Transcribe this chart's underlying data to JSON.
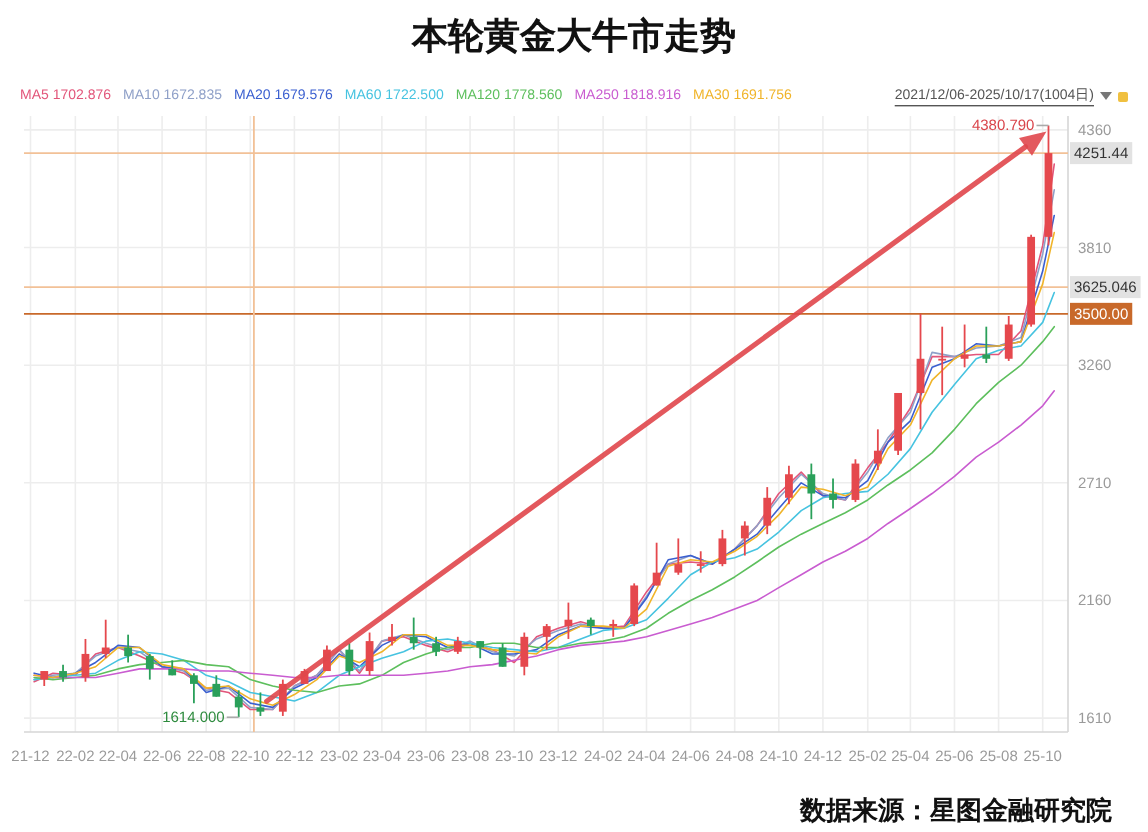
{
  "chart_data": {
    "type": "candlestick",
    "title": "本轮黄金大牛市走势",
    "x": [
      "2021-12-20",
      "2022-01-15",
      "2022-02-15",
      "2022-03-15",
      "2022-04-15",
      "2022-05-15",
      "2022-06-15",
      "2022-07-15",
      "2022-08-15",
      "2022-09-15",
      "2022-10-15",
      "2022-11-15",
      "2022-12-15",
      "2023-01-15",
      "2023-02-15",
      "2023-03-15",
      "2023-04-15",
      "2023-05-15",
      "2023-06-15",
      "2023-07-15",
      "2023-08-15",
      "2023-09-15",
      "2023-10-15",
      "2023-11-15",
      "2023-12-15",
      "2024-01-15",
      "2024-02-15",
      "2024-03-15",
      "2024-04-15",
      "2024-05-15",
      "2024-06-15",
      "2024-07-15",
      "2024-08-15",
      "2024-09-15",
      "2024-10-15",
      "2024-11-15",
      "2024-12-15",
      "2025-01-15",
      "2025-02-15",
      "2025-03-15",
      "2025-04-15",
      "2025-05-15",
      "2025-06-15",
      "2025-07-15",
      "2025-08-15",
      "2025-09-15",
      "2025-10-09"
    ],
    "ohlc": [
      [
        1790,
        1830,
        1760,
        1830
      ],
      [
        1830,
        1860,
        1780,
        1800
      ],
      [
        1800,
        1980,
        1780,
        1910
      ],
      [
        1910,
        2070,
        1890,
        1940
      ],
      [
        1940,
        2000,
        1870,
        1900
      ],
      [
        1900,
        1910,
        1790,
        1840
      ],
      [
        1840,
        1880,
        1810,
        1810
      ],
      [
        1810,
        1820,
        1680,
        1770
      ],
      [
        1770,
        1810,
        1710,
        1710
      ],
      [
        1710,
        1740,
        1614,
        1660
      ],
      [
        1660,
        1730,
        1620,
        1640
      ],
      [
        1640,
        1790,
        1620,
        1770
      ],
      [
        1770,
        1840,
        1770,
        1830
      ],
      [
        1830,
        1950,
        1830,
        1930
      ],
      [
        1930,
        1960,
        1810,
        1830
      ],
      [
        1830,
        2010,
        1810,
        1970
      ],
      [
        1970,
        2050,
        1950,
        1990
      ],
      [
        1990,
        2080,
        1930,
        1960
      ],
      [
        1960,
        1990,
        1900,
        1920
      ],
      [
        1920,
        1990,
        1910,
        1970
      ],
      [
        1970,
        1970,
        1890,
        1940
      ],
      [
        1940,
        1960,
        1850,
        1850
      ],
      [
        1850,
        2010,
        1810,
        1990
      ],
      [
        1990,
        2050,
        1930,
        2040
      ],
      [
        2040,
        2150,
        1980,
        2070
      ],
      [
        2070,
        2080,
        2000,
        2040
      ],
      [
        2040,
        2070,
        1990,
        2050
      ],
      [
        2050,
        2240,
        2040,
        2230
      ],
      [
        2230,
        2430,
        2230,
        2290
      ],
      [
        2290,
        2450,
        2280,
        2330
      ],
      [
        2330,
        2390,
        2290,
        2330
      ],
      [
        2330,
        2490,
        2320,
        2450
      ],
      [
        2450,
        2530,
        2370,
        2510
      ],
      [
        2510,
        2690,
        2470,
        2640
      ],
      [
        2640,
        2790,
        2610,
        2750
      ],
      [
        2750,
        2800,
        2540,
        2660
      ],
      [
        2660,
        2730,
        2590,
        2630
      ],
      [
        2630,
        2820,
        2620,
        2800
      ],
      [
        2800,
        2960,
        2770,
        2860
      ],
      [
        2860,
        3130,
        2840,
        3130
      ],
      [
        3130,
        3500,
        2960,
        3290
      ],
      [
        3290,
        3440,
        3120,
        3290
      ],
      [
        3290,
        3450,
        3250,
        3310
      ],
      [
        3310,
        3440,
        3270,
        3290
      ],
      [
        3290,
        3490,
        3280,
        3450
      ],
      [
        3450,
        3870,
        3440,
        3860
      ],
      [
        3860,
        4380.79,
        3820,
        4251.44
      ]
    ],
    "colors": [
      "#e5484d",
      "#2aa05a",
      "#e5484d",
      "#e5484d",
      "#2aa05a",
      "#2aa05a",
      "#2aa05a",
      "#2aa05a",
      "#2aa05a",
      "#2aa05a",
      "#2aa05a",
      "#e5484d",
      "#e5484d",
      "#e5484d",
      "#2aa05a",
      "#e5484d",
      "#e5484d",
      "#2aa05a",
      "#2aa05a",
      "#e5484d",
      "#2aa05a",
      "#2aa05a",
      "#e5484d",
      "#e5484d",
      "#e5484d",
      "#2aa05a",
      "#e5484d",
      "#e5484d",
      "#e5484d",
      "#e5484d",
      "#e5484d",
      "#e5484d",
      "#e5484d",
      "#e5484d",
      "#e5484d",
      "#2aa05a",
      "#2aa05a",
      "#e5484d",
      "#e5484d",
      "#e5484d",
      "#e5484d",
      "#e5484d",
      "#e5484d",
      "#2aa05a",
      "#e5484d",
      "#e5484d",
      "#e5484d"
    ],
    "series": [
      {
        "type": "line",
        "name": "MA5 1702.876",
        "color": "#e2557a",
        "x": [
          "2021-12-06",
          "2022-01-01",
          "2022-02-01",
          "2022-03-01",
          "2022-04-01",
          "2022-05-01",
          "2022-06-01",
          "2022-07-01",
          "2022-08-01",
          "2022-09-01",
          "2022-10-01",
          "2022-11-01",
          "2022-12-01",
          "2023-01-01",
          "2023-02-01",
          "2023-03-01",
          "2023-04-01",
          "2023-05-01",
          "2023-06-01",
          "2023-07-01",
          "2023-08-01",
          "2023-09-01",
          "2023-10-01",
          "2023-11-01",
          "2023-12-01",
          "2024-01-01",
          "2024-02-01",
          "2024-03-01",
          "2024-04-01",
          "2024-05-01",
          "2024-06-01",
          "2024-07-01",
          "2024-08-01",
          "2024-09-01",
          "2024-10-01",
          "2024-11-01",
          "2024-12-01",
          "2025-01-01",
          "2025-02-01",
          "2025-03-01",
          "2025-04-01",
          "2025-05-01",
          "2025-06-01",
          "2025-07-01",
          "2025-08-01",
          "2025-09-01",
          "2025-10-01",
          "2025-10-17"
        ],
        "values": [
          1780,
          1820,
          1810,
          1910,
          1940,
          1900,
          1850,
          1820,
          1750,
          1730,
          1650,
          1650,
          1760,
          1810,
          1930,
          1820,
          1970,
          1990,
          1950,
          1920,
          1960,
          1930,
          1870,
          1990,
          2030,
          2060,
          2030,
          2040,
          2200,
          2330,
          2340,
          2330,
          2400,
          2510,
          2660,
          2760,
          2650,
          2630,
          2780,
          2900,
          3060,
          3300,
          3300,
          3310,
          3310,
          3420,
          3820,
          4200
        ]
      },
      {
        "type": "line",
        "name": "MA10 1672.835",
        "color": "#8fa0c8",
        "x": [
          "2021-12-06",
          "2022-01-01",
          "2022-02-01",
          "2022-03-01",
          "2022-04-01",
          "2022-05-01",
          "2022-06-01",
          "2022-07-01",
          "2022-08-01",
          "2022-09-01",
          "2022-10-01",
          "2022-11-01",
          "2022-12-01",
          "2023-01-01",
          "2023-02-01",
          "2023-03-01",
          "2023-04-01",
          "2023-05-01",
          "2023-06-01",
          "2023-07-01",
          "2023-08-01",
          "2023-09-01",
          "2023-10-01",
          "2023-11-01",
          "2023-12-01",
          "2024-01-01",
          "2024-02-01",
          "2024-03-01",
          "2024-04-01",
          "2024-05-01",
          "2024-06-01",
          "2024-07-01",
          "2024-08-01",
          "2024-09-01",
          "2024-10-01",
          "2024-11-01",
          "2024-12-01",
          "2025-01-01",
          "2025-02-01",
          "2025-03-01",
          "2025-04-01",
          "2025-05-01",
          "2025-06-01",
          "2025-07-01",
          "2025-08-01",
          "2025-09-01",
          "2025-10-01",
          "2025-10-17"
        ],
        "values": [
          1790,
          1810,
          1820,
          1900,
          1940,
          1920,
          1850,
          1830,
          1740,
          1750,
          1660,
          1650,
          1760,
          1810,
          1930,
          1830,
          1970,
          2000,
          1960,
          1930,
          1970,
          1920,
          1900,
          1980,
          2020,
          2050,
          2030,
          2030,
          2180,
          2330,
          2370,
          2330,
          2400,
          2510,
          2640,
          2750,
          2660,
          2630,
          2760,
          2920,
          3040,
          3320,
          3300,
          3340,
          3350,
          3390,
          3780,
          4080
        ]
      },
      {
        "type": "line",
        "name": "MA20 1679.576",
        "color": "#3a5fd0",
        "x": [
          "2021-12-06",
          "2022-01-01",
          "2022-02-01",
          "2022-03-01",
          "2022-04-01",
          "2022-05-01",
          "2022-06-01",
          "2022-07-01",
          "2022-08-01",
          "2022-09-01",
          "2022-10-01",
          "2022-11-01",
          "2022-12-01",
          "2023-01-01",
          "2023-02-01",
          "2023-03-01",
          "2023-04-01",
          "2023-05-01",
          "2023-06-01",
          "2023-07-01",
          "2023-08-01",
          "2023-09-01",
          "2023-10-01",
          "2023-11-01",
          "2023-12-01",
          "2024-01-01",
          "2024-02-01",
          "2024-03-01",
          "2024-04-01",
          "2024-05-01",
          "2024-06-01",
          "2024-07-01",
          "2024-08-01",
          "2024-09-01",
          "2024-10-01",
          "2024-11-01",
          "2024-12-01",
          "2025-01-01",
          "2025-02-01",
          "2025-03-01",
          "2025-04-01",
          "2025-05-01",
          "2025-06-01",
          "2025-07-01",
          "2025-08-01",
          "2025-09-01",
          "2025-10-01",
          "2025-10-17"
        ],
        "values": [
          1820,
          1800,
          1820,
          1870,
          1950,
          1940,
          1850,
          1840,
          1730,
          1760,
          1680,
          1660,
          1750,
          1800,
          1910,
          1850,
          1950,
          2000,
          1990,
          1940,
          1960,
          1910,
          1910,
          1930,
          2000,
          2040,
          2030,
          2030,
          2170,
          2350,
          2370,
          2330,
          2400,
          2470,
          2590,
          2710,
          2650,
          2640,
          2720,
          2900,
          3000,
          3250,
          3290,
          3360,
          3350,
          3370,
          3700,
          3960
        ]
      },
      {
        "type": "line",
        "name": "MA60 1722.500",
        "color": "#46c3e0",
        "x": [
          "2021-12-06",
          "2022-01-01",
          "2022-02-01",
          "2022-03-01",
          "2022-04-01",
          "2022-05-01",
          "2022-06-01",
          "2022-07-01",
          "2022-08-01",
          "2022-09-01",
          "2022-10-01",
          "2022-11-01",
          "2022-12-01",
          "2023-01-01",
          "2023-02-01",
          "2023-03-01",
          "2023-04-01",
          "2023-05-01",
          "2023-06-01",
          "2023-07-01",
          "2023-08-01",
          "2023-09-01",
          "2023-10-01",
          "2023-11-01",
          "2023-12-01",
          "2024-01-01",
          "2024-02-01",
          "2024-03-01",
          "2024-04-01",
          "2024-05-01",
          "2024-06-01",
          "2024-07-01",
          "2024-08-01",
          "2024-09-01",
          "2024-10-01",
          "2024-11-01",
          "2024-12-01",
          "2025-01-01",
          "2025-02-01",
          "2025-03-01",
          "2025-04-01",
          "2025-05-01",
          "2025-06-01",
          "2025-07-01",
          "2025-08-01",
          "2025-09-01",
          "2025-10-01",
          "2025-10-17"
        ],
        "values": [
          1790,
          1800,
          1810,
          1820,
          1880,
          1920,
          1910,
          1880,
          1810,
          1780,
          1730,
          1710,
          1690,
          1730,
          1810,
          1850,
          1890,
          1920,
          1970,
          1980,
          1960,
          1940,
          1930,
          1920,
          1940,
          1980,
          2020,
          2030,
          2070,
          2170,
          2280,
          2340,
          2360,
          2400,
          2480,
          2580,
          2640,
          2660,
          2670,
          2750,
          2870,
          3040,
          3170,
          3290,
          3330,
          3350,
          3460,
          3600
        ]
      },
      {
        "type": "line",
        "name": "MA120 1778.560",
        "color": "#5dbf5d",
        "x": [
          "2021-12-06",
          "2022-01-01",
          "2022-02-01",
          "2022-03-01",
          "2022-04-01",
          "2022-05-01",
          "2022-06-01",
          "2022-07-01",
          "2022-08-01",
          "2022-09-01",
          "2022-10-01",
          "2022-11-01",
          "2022-12-01",
          "2023-01-01",
          "2023-02-01",
          "2023-03-01",
          "2023-04-01",
          "2023-05-01",
          "2023-06-01",
          "2023-07-01",
          "2023-08-01",
          "2023-09-01",
          "2023-10-01",
          "2023-11-01",
          "2023-12-01",
          "2024-01-01",
          "2024-02-01",
          "2024-03-01",
          "2024-04-01",
          "2024-05-01",
          "2024-06-01",
          "2024-07-01",
          "2024-08-01",
          "2024-09-01",
          "2024-10-01",
          "2024-11-01",
          "2024-12-01",
          "2025-01-01",
          "2025-02-01",
          "2025-03-01",
          "2025-04-01",
          "2025-05-01",
          "2025-06-01",
          "2025-07-01",
          "2025-08-01",
          "2025-09-01",
          "2025-10-01",
          "2025-10-17"
        ],
        "values": [
          1800,
          1790,
          1800,
          1810,
          1840,
          1860,
          1870,
          1880,
          1860,
          1850,
          1790,
          1760,
          1740,
          1730,
          1760,
          1770,
          1810,
          1870,
          1910,
          1940,
          1940,
          1960,
          1960,
          1940,
          1940,
          1960,
          1970,
          1990,
          2030,
          2100,
          2160,
          2210,
          2270,
          2340,
          2410,
          2470,
          2520,
          2570,
          2630,
          2700,
          2770,
          2850,
          2960,
          3080,
          3180,
          3260,
          3370,
          3440
        ]
      },
      {
        "type": "line",
        "name": "MA250 1818.916",
        "color": "#c95cd0",
        "x": [
          "2021-12-06",
          "2022-01-01",
          "2022-02-01",
          "2022-03-01",
          "2022-04-01",
          "2022-05-01",
          "2022-06-01",
          "2022-07-01",
          "2022-08-01",
          "2022-09-01",
          "2022-10-01",
          "2022-11-01",
          "2022-12-01",
          "2023-01-01",
          "2023-02-01",
          "2023-03-01",
          "2023-04-01",
          "2023-05-01",
          "2023-06-01",
          "2023-07-01",
          "2023-08-01",
          "2023-09-01",
          "2023-10-01",
          "2023-11-01",
          "2023-12-01",
          "2024-01-01",
          "2024-02-01",
          "2024-03-01",
          "2024-04-01",
          "2024-05-01",
          "2024-06-01",
          "2024-07-01",
          "2024-08-01",
          "2024-09-01",
          "2024-10-01",
          "2024-11-01",
          "2024-12-01",
          "2025-01-01",
          "2025-02-01",
          "2025-03-01",
          "2025-04-01",
          "2025-05-01",
          "2025-06-01",
          "2025-07-01",
          "2025-08-01",
          "2025-09-01",
          "2025-10-01",
          "2025-10-17"
        ],
        "values": [
          1810,
          1800,
          1800,
          1800,
          1820,
          1840,
          1840,
          1840,
          1830,
          1830,
          1820,
          1810,
          1800,
          1800,
          1810,
          1810,
          1810,
          1810,
          1820,
          1830,
          1850,
          1860,
          1880,
          1900,
          1930,
          1950,
          1960,
          1970,
          1990,
          2020,
          2050,
          2080,
          2120,
          2160,
          2220,
          2280,
          2340,
          2390,
          2450,
          2520,
          2590,
          2660,
          2740,
          2830,
          2900,
          2980,
          3070,
          3140
        ]
      },
      {
        "type": "line",
        "name": "MA30 1691.756",
        "color": "#f0b429",
        "x": [
          "2021-12-06",
          "2022-01-01",
          "2022-02-01",
          "2022-03-01",
          "2022-04-01",
          "2022-05-01",
          "2022-06-01",
          "2022-07-01",
          "2022-08-01",
          "2022-09-01",
          "2022-10-01",
          "2022-11-01",
          "2022-12-01",
          "2023-01-01",
          "2023-02-01",
          "2023-03-01",
          "2023-04-01",
          "2023-05-01",
          "2023-06-01",
          "2023-07-01",
          "2023-08-01",
          "2023-09-01",
          "2023-10-01",
          "2023-11-01",
          "2023-12-01",
          "2024-01-01",
          "2024-02-01",
          "2024-03-01",
          "2024-04-01",
          "2024-05-01",
          "2024-06-01",
          "2024-07-01",
          "2024-08-01",
          "2024-09-01",
          "2024-10-01",
          "2024-11-01",
          "2024-12-01",
          "2025-01-01",
          "2025-02-01",
          "2025-03-01",
          "2025-04-01",
          "2025-05-01",
          "2025-06-01",
          "2025-07-01",
          "2025-08-01",
          "2025-09-01",
          "2025-10-01",
          "2025-10-17"
        ],
        "values": [
          1810,
          1800,
          1820,
          1850,
          1940,
          1940,
          1860,
          1840,
          1750,
          1760,
          1700,
          1670,
          1720,
          1790,
          1900,
          1870,
          1920,
          2000,
          2000,
          1950,
          1950,
          1930,
          1920,
          1910,
          1990,
          2040,
          2040,
          2030,
          2120,
          2320,
          2350,
          2340,
          2390,
          2460,
          2560,
          2690,
          2680,
          2650,
          2690,
          2870,
          2980,
          3190,
          3290,
          3350,
          3350,
          3370,
          3640,
          3880
        ]
      }
    ],
    "xlim": [
      "2021-11-22",
      "2025-11-05"
    ],
    "xticks": [
      {
        "value": "2021-12-01",
        "label": "21-12"
      },
      {
        "value": "2022-02-01",
        "label": "22-02"
      },
      {
        "value": "2022-04-01",
        "label": "22-04"
      },
      {
        "value": "2022-06-01",
        "label": "22-06"
      },
      {
        "value": "2022-08-01",
        "label": "22-08"
      },
      {
        "value": "2022-10-01",
        "label": "22-10"
      },
      {
        "value": "2022-12-01",
        "label": "22-12"
      },
      {
        "value": "2023-02-01",
        "label": "23-02"
      },
      {
        "value": "2023-04-01",
        "label": "23-04"
      },
      {
        "value": "2023-06-01",
        "label": "23-06"
      },
      {
        "value": "2023-08-01",
        "label": "23-08"
      },
      {
        "value": "2023-10-01",
        "label": "23-10"
      },
      {
        "value": "2023-12-01",
        "label": "23-12"
      },
      {
        "value": "2024-02-01",
        "label": "24-02"
      },
      {
        "value": "2024-04-01",
        "label": "24-04"
      },
      {
        "value": "2024-06-01",
        "label": "24-06"
      },
      {
        "value": "2024-08-01",
        "label": "24-08"
      },
      {
        "value": "2024-10-01",
        "label": "24-10"
      },
      {
        "value": "2024-12-01",
        "label": "24-12"
      },
      {
        "value": "2025-02-01",
        "label": "25-02"
      },
      {
        "value": "2025-04-01",
        "label": "25-04"
      },
      {
        "value": "2025-06-01",
        "label": "25-06"
      },
      {
        "value": "2025-08-01",
        "label": "25-08"
      },
      {
        "value": "2025-10-01",
        "label": "25-10"
      }
    ],
    "ylim": [
      1545,
      4425
    ],
    "yticks": [
      1610,
      2160,
      2710,
      3260,
      3810,
      4360
    ],
    "grid": true,
    "legend": "top left",
    "ref_lines": [
      {
        "axis": "y",
        "value": 4251.44,
        "label": "4251.44"
      },
      {
        "axis": "y",
        "value": 3625.046,
        "label": "3625.046"
      },
      {
        "axis": "y",
        "value": 3500,
        "label": "3500.00",
        "color": "#c8692a"
      },
      {
        "axis": "x",
        "value": "2022-10-06"
      }
    ],
    "annotations": [
      "2021/12/06-2025/10/17(1004日)",
      {
        "text": "4380.790",
        "x": "2025-10-09",
        "y": 4380.79
      },
      {
        "text": "1614.000",
        "x": "2022-09-15",
        "y": 1614
      },
      "数据来源：星图金融研究院"
    ]
  }
}
